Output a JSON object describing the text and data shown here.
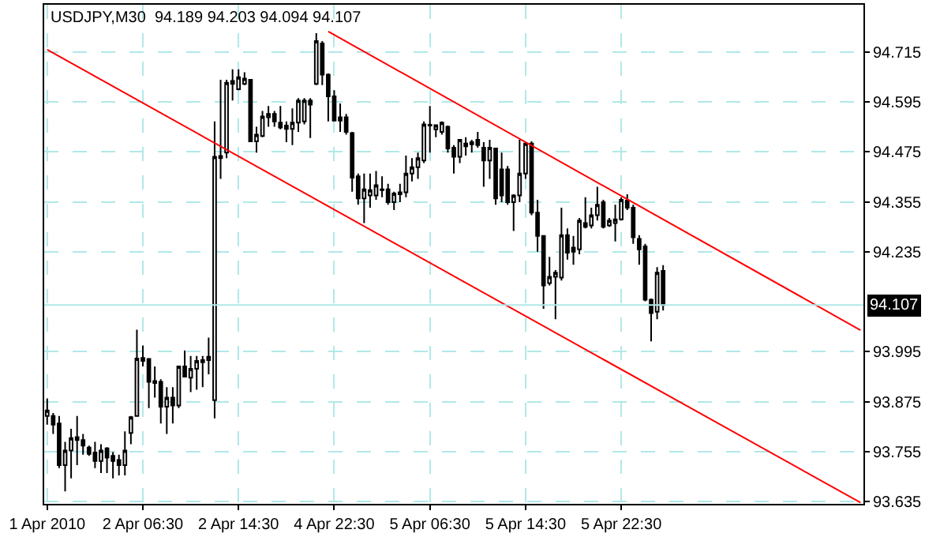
{
  "chart_data": {
    "type": "candlestick",
    "title": "USDJPY,M30  94.189 94.203 94.094 94.107",
    "color": "#000000",
    "categories": [
      "1 Apr 2010",
      null,
      null,
      null,
      null,
      null,
      null,
      null,
      null,
      null,
      null,
      null,
      null,
      null,
      null,
      null,
      "2 Apr 06:30",
      null,
      null,
      null,
      null,
      null,
      null,
      null,
      null,
      null,
      null,
      null,
      null,
      null,
      null,
      null,
      "2 Apr 14:30",
      null,
      null,
      null,
      null,
      null,
      null,
      null,
      null,
      null,
      null,
      null,
      null,
      null,
      null,
      null,
      "4 Apr 22:30",
      null,
      null,
      null,
      null,
      null,
      null,
      null,
      null,
      null,
      null,
      null,
      null,
      null,
      null,
      null,
      "5 Apr 06:30",
      null,
      null,
      null,
      null,
      null,
      null,
      null,
      null,
      null,
      null,
      null,
      null,
      null,
      null,
      null,
      "5 Apr 14:30",
      null,
      null,
      null,
      null,
      null,
      null,
      null,
      null,
      null,
      null,
      null,
      null,
      null,
      null,
      null,
      "5 Apr 22:30",
      null,
      null,
      null,
      null,
      null,
      null,
      null,
      null,
      null,
      null,
      null,
      null,
      null,
      null,
      null,
      null,
      null,
      null,
      null,
      null,
      null,
      null,
      null,
      null,
      null,
      null,
      null,
      null,
      null,
      null,
      null,
      null,
      null,
      null,
      null,
      null,
      null,
      null,
      null,
      null
    ],
    "ohlc": [
      [
        93.841,
        93.883,
        93.82,
        93.854
      ],
      [
        93.841,
        93.848,
        93.798,
        93.82
      ],
      [
        93.823,
        93.841,
        93.716,
        93.723
      ],
      [
        93.723,
        93.779,
        93.66,
        93.758
      ],
      [
        93.758,
        93.81,
        93.691,
        93.788
      ],
      [
        93.783,
        93.841,
        93.723,
        93.79
      ],
      [
        93.783,
        93.798,
        93.748,
        93.77
      ],
      [
        93.765,
        93.77,
        93.745,
        93.75
      ],
      [
        93.753,
        93.779,
        93.716,
        93.733
      ],
      [
        93.733,
        93.773,
        93.704,
        93.758
      ],
      [
        93.763,
        93.766,
        93.704,
        93.741
      ],
      [
        93.745,
        93.754,
        93.691,
        93.733
      ],
      [
        93.735,
        93.748,
        93.698,
        93.723
      ],
      [
        93.723,
        93.804,
        93.698,
        93.758
      ],
      [
        93.8,
        93.841,
        93.773,
        93.838
      ],
      [
        93.841,
        94.048,
        93.841,
        93.979
      ],
      [
        93.98,
        94.01,
        93.96,
        93.973
      ],
      [
        93.978,
        93.979,
        93.86,
        93.923
      ],
      [
        93.925,
        93.96,
        93.885,
        93.92
      ],
      [
        93.923,
        93.929,
        93.823,
        93.863
      ],
      [
        93.863,
        93.91,
        93.798,
        93.885
      ],
      [
        93.885,
        93.91,
        93.823,
        93.866
      ],
      [
        93.866,
        93.96,
        93.86,
        93.96
      ],
      [
        93.96,
        93.998,
        93.935,
        93.935
      ],
      [
        93.933,
        93.985,
        93.898,
        93.954
      ],
      [
        93.954,
        93.985,
        93.904,
        93.973
      ],
      [
        93.97,
        93.985,
        93.91,
        93.975
      ],
      [
        93.975,
        94.029,
        93.941,
        93.983
      ],
      [
        93.879,
        94.548,
        93.835,
        94.463
      ],
      [
        94.46,
        94.648,
        94.41,
        94.465
      ],
      [
        94.473,
        94.648,
        94.46,
        94.641
      ],
      [
        94.645,
        94.673,
        94.598,
        94.638
      ],
      [
        94.625,
        94.673,
        94.623,
        94.654
      ],
      [
        94.638,
        94.666,
        94.635,
        94.651
      ],
      [
        94.648,
        94.65,
        94.5,
        94.5
      ],
      [
        94.5,
        94.535,
        94.473,
        94.516
      ],
      [
        94.513,
        94.573,
        94.51,
        94.56
      ],
      [
        94.558,
        94.585,
        94.535,
        94.566
      ],
      [
        94.566,
        94.573,
        94.535,
        94.548
      ],
      [
        94.545,
        94.585,
        94.529,
        94.533
      ],
      [
        94.538,
        94.548,
        94.498,
        94.53
      ],
      [
        94.53,
        94.579,
        94.491,
        94.545
      ],
      [
        94.545,
        94.604,
        94.523,
        94.598
      ],
      [
        94.548,
        94.604,
        94.541,
        94.598
      ],
      [
        94.598,
        94.604,
        94.508,
        94.588
      ],
      [
        94.638,
        94.76,
        94.635,
        94.741
      ],
      [
        94.735,
        94.741,
        94.635,
        94.66
      ],
      [
        94.66,
        94.663,
        94.548,
        94.608
      ],
      [
        94.608,
        94.623,
        94.548,
        94.55
      ],
      [
        94.558,
        94.591,
        94.523,
        94.55
      ],
      [
        94.558,
        94.566,
        94.516,
        94.523
      ],
      [
        94.52,
        94.523,
        94.379,
        94.413
      ],
      [
        94.416,
        94.423,
        94.348,
        94.363
      ],
      [
        94.363,
        94.423,
        94.304,
        94.385
      ],
      [
        94.37,
        94.423,
        94.341,
        94.383
      ],
      [
        94.37,
        94.429,
        94.36,
        94.395
      ],
      [
        94.385,
        94.416,
        94.366,
        94.383
      ],
      [
        94.385,
        94.398,
        94.348,
        94.354
      ],
      [
        94.354,
        94.379,
        94.335,
        94.375
      ],
      [
        94.373,
        94.398,
        94.354,
        94.378
      ],
      [
        94.378,
        94.466,
        94.366,
        94.423
      ],
      [
        94.423,
        94.46,
        94.404,
        94.438
      ],
      [
        94.438,
        94.473,
        94.41,
        94.46
      ],
      [
        94.454,
        94.548,
        94.448,
        94.541
      ],
      [
        94.538,
        94.585,
        94.473,
        94.54
      ],
      [
        94.529,
        94.541,
        94.51,
        94.539
      ],
      [
        94.523,
        94.548,
        94.516,
        94.545
      ],
      [
        94.535,
        94.538,
        94.473,
        94.483
      ],
      [
        94.485,
        94.491,
        94.423,
        94.463
      ],
      [
        94.463,
        94.504,
        94.448,
        94.504
      ],
      [
        94.488,
        94.51,
        94.466,
        94.495
      ],
      [
        94.493,
        94.504,
        94.473,
        94.498
      ],
      [
        94.504,
        94.523,
        94.485,
        94.491
      ],
      [
        94.485,
        94.498,
        94.391,
        94.454
      ],
      [
        94.454,
        94.504,
        94.41,
        94.485
      ],
      [
        94.483,
        94.485,
        94.348,
        94.363
      ],
      [
        94.433,
        94.473,
        94.354,
        94.37
      ],
      [
        94.433,
        94.441,
        94.348,
        94.354
      ],
      [
        94.354,
        94.373,
        94.285,
        94.37
      ],
      [
        94.37,
        94.504,
        94.354,
        94.423
      ],
      [
        94.423,
        94.498,
        94.41,
        94.495
      ],
      [
        94.495,
        94.5,
        94.323,
        94.329
      ],
      [
        94.329,
        94.36,
        94.235,
        94.273
      ],
      [
        94.273,
        94.275,
        94.098,
        94.154
      ],
      [
        94.16,
        94.223,
        94.154,
        94.175
      ],
      [
        94.175,
        94.191,
        94.073,
        94.185
      ],
      [
        94.173,
        94.341,
        94.166,
        94.275
      ],
      [
        94.275,
        94.291,
        94.216,
        94.233
      ],
      [
        94.245,
        94.273,
        94.204,
        94.235
      ],
      [
        94.241,
        94.316,
        94.229,
        94.31
      ],
      [
        94.304,
        94.366,
        94.291,
        94.295
      ],
      [
        94.298,
        94.341,
        94.291,
        94.323
      ],
      [
        94.323,
        94.391,
        94.31,
        94.348
      ],
      [
        94.354,
        94.36,
        94.291,
        94.295
      ],
      [
        94.298,
        94.316,
        94.295,
        94.31
      ],
      [
        94.304,
        94.348,
        94.26,
        94.313
      ],
      [
        94.313,
        94.366,
        94.31,
        94.36
      ],
      [
        94.358,
        94.373,
        94.335,
        94.341
      ],
      [
        94.341,
        94.348,
        94.254,
        94.27
      ],
      [
        94.266,
        94.275,
        94.204,
        94.241
      ],
      [
        94.248,
        94.254,
        94.116,
        94.12
      ],
      [
        94.12,
        94.123,
        94.02,
        94.088
      ],
      [
        94.091,
        94.198,
        94.073,
        94.185
      ],
      [
        94.189,
        94.203,
        94.094,
        94.107
      ],
      null,
      null,
      null,
      null,
      null,
      null,
      null,
      null,
      null,
      null,
      null,
      null,
      null,
      null,
      null,
      null,
      null,
      null,
      null,
      null,
      null,
      null,
      null,
      null,
      null,
      null,
      null,
      null,
      null,
      null,
      null,
      null,
      null
    ],
    "series": [
      {
        "type": "line",
        "color": "#ff0000",
        "values": [
          null,
          null,
          null,
          null,
          null,
          null,
          null,
          null,
          null,
          null,
          null,
          null,
          null,
          null,
          null,
          null,
          null,
          null,
          null,
          null,
          null,
          null,
          null,
          null,
          null,
          null,
          null,
          null,
          null,
          null,
          null,
          null,
          null,
          null,
          null,
          null,
          null,
          null,
          null,
          null,
          null,
          null,
          null,
          null,
          null,
          null,
          null,
          94.764,
          null,
          null,
          null,
          null,
          null,
          null,
          null,
          null,
          null,
          null,
          null,
          null,
          null,
          null,
          null,
          null,
          null,
          null,
          null,
          null,
          null,
          null,
          null,
          null,
          null,
          null,
          null,
          null,
          null,
          null,
          null,
          null,
          null,
          null,
          null,
          null,
          null,
          null,
          null,
          null,
          null,
          null,
          null,
          null,
          null,
          null,
          null,
          null,
          null,
          null,
          null,
          null,
          null,
          null,
          null,
          null,
          null,
          null,
          null,
          null,
          null,
          null,
          null,
          null,
          null,
          null,
          null,
          null,
          null,
          null,
          null,
          null,
          null,
          null,
          null,
          null,
          null,
          null,
          null,
          null,
          null,
          null,
          null,
          null,
          null,
          null,
          null,
          null,
          94.047
        ]
      },
      {
        "type": "line",
        "color": "#ff0000",
        "values": [
          94.72,
          null,
          null,
          null,
          null,
          null,
          null,
          null,
          null,
          null,
          null,
          null,
          null,
          null,
          null,
          null,
          null,
          null,
          null,
          null,
          null,
          null,
          null,
          null,
          null,
          null,
          null,
          null,
          null,
          null,
          null,
          null,
          null,
          null,
          null,
          null,
          null,
          null,
          null,
          null,
          null,
          null,
          null,
          null,
          null,
          null,
          null,
          null,
          null,
          null,
          null,
          null,
          null,
          null,
          null,
          null,
          null,
          null,
          null,
          null,
          null,
          null,
          null,
          null,
          null,
          null,
          null,
          null,
          null,
          null,
          null,
          null,
          null,
          null,
          null,
          null,
          null,
          null,
          null,
          null,
          null,
          null,
          null,
          null,
          null,
          null,
          null,
          null,
          null,
          null,
          null,
          null,
          null,
          null,
          null,
          null,
          null,
          null,
          null,
          null,
          null,
          null,
          null,
          null,
          null,
          null,
          null,
          null,
          null,
          null,
          null,
          null,
          null,
          null,
          null,
          null,
          null,
          null,
          null,
          null,
          null,
          null,
          null,
          null,
          null,
          null,
          null,
          null,
          null,
          null,
          null,
          null,
          null,
          null,
          null,
          null,
          93.633
        ]
      }
    ],
    "ylim": [
      93.63,
      94.828
    ],
    "yticks": [
      93.635,
      93.755,
      93.875,
      93.995,
      94.235,
      94.355,
      94.475,
      94.595,
      94.715
    ],
    "ref_lines": [
      {
        "axis": "y",
        "value": 94.107,
        "label": "94.107",
        "color": "#b0e8e8"
      }
    ],
    "grid": true
  }
}
